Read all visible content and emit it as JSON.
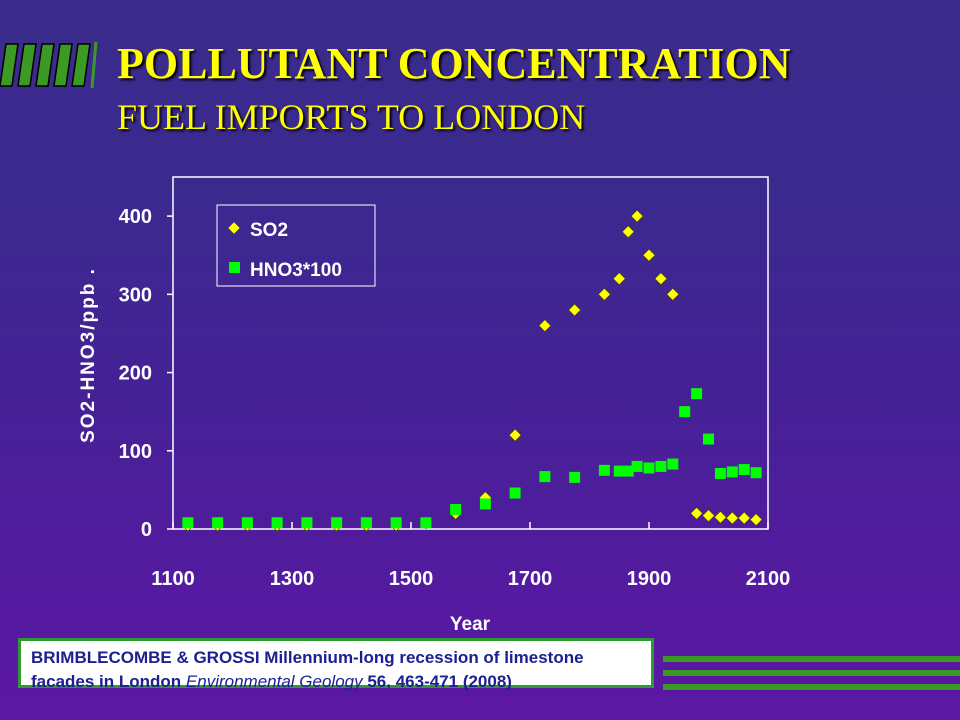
{
  "slide": {
    "title": "POLLUTANT CONCENTRATION",
    "subtitle": "FUEL IMPORTS TO LONDON"
  },
  "reference": {
    "authors": "BRIMBLECOMBE & GROSSI Millennium-long recession of limestone",
    "line2_start": "facades in London ",
    "journal": "Environmental Geology",
    "citation": " 56, 463-471 (2008)"
  },
  "colors": {
    "series_so2": "#ffff00",
    "series_hno3": "#00ff00",
    "title": "#ffff00",
    "accent_green": "#3a9a24"
  },
  "chart_data": {
    "type": "scatter",
    "xlabel": "Year",
    "ylabel": "SO2-HNO3/ppb .",
    "xlim": [
      1100,
      2100
    ],
    "ylim": [
      0,
      450
    ],
    "xticks": [
      1100,
      1300,
      1500,
      1700,
      1900,
      2100
    ],
    "yticks": [
      0,
      100,
      200,
      300,
      400
    ],
    "legend_position": "top-left",
    "series": [
      {
        "name": "SO2",
        "marker": "diamond",
        "color": "#ffff00",
        "x": [
          1125,
          1175,
          1225,
          1275,
          1325,
          1375,
          1425,
          1475,
          1525,
          1575,
          1625,
          1675,
          1725,
          1775,
          1825,
          1850,
          1865,
          1880,
          1900,
          1920,
          1940,
          1960,
          1980,
          2000,
          2020,
          2040,
          2060,
          2080
        ],
        "y": [
          5,
          5,
          5,
          5,
          5,
          5,
          5,
          5,
          8,
          20,
          40,
          120,
          260,
          280,
          300,
          320,
          380,
          400,
          350,
          320,
          300,
          150,
          20,
          17,
          15,
          14,
          14,
          12
        ]
      },
      {
        "name": "HNO3*100",
        "marker": "square",
        "color": "#00ff00",
        "x": [
          1125,
          1175,
          1225,
          1275,
          1325,
          1375,
          1425,
          1475,
          1525,
          1575,
          1625,
          1675,
          1725,
          1775,
          1825,
          1850,
          1865,
          1880,
          1900,
          1920,
          1940,
          1960,
          1980,
          2000,
          2020,
          2040,
          2060,
          2080
        ],
        "y": [
          8,
          8,
          8,
          8,
          8,
          8,
          8,
          8,
          8,
          25,
          32,
          46,
          67,
          66,
          75,
          74,
          74,
          80,
          78,
          80,
          83,
          150,
          173,
          115,
          71,
          73,
          76,
          72
        ]
      }
    ]
  }
}
